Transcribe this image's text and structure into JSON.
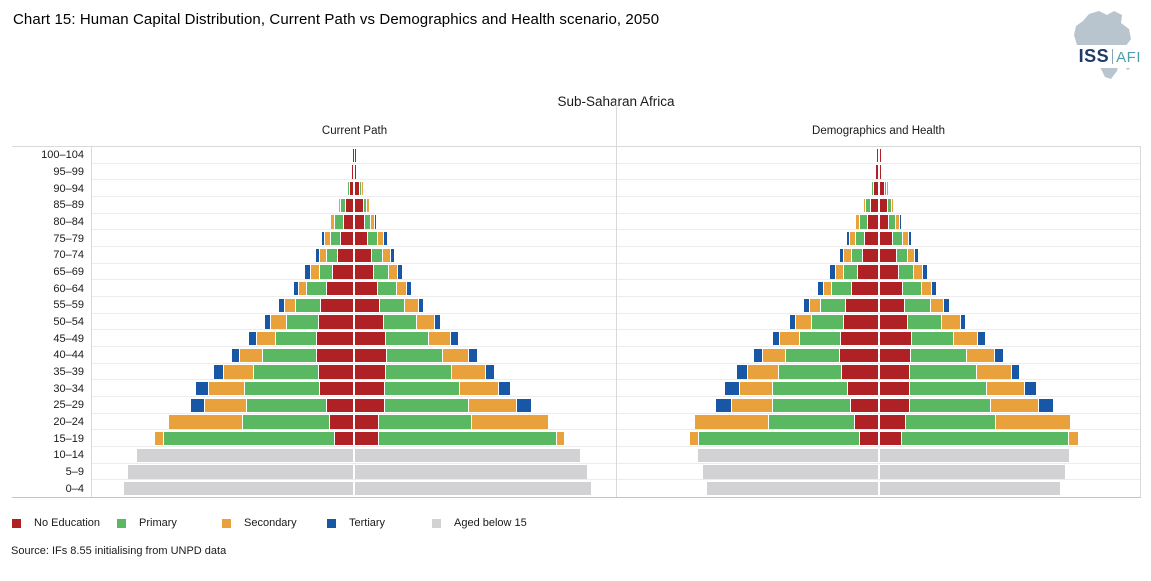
{
  "header": {
    "title": "Chart 15: Human Capital Distribution, Current Path vs Demographics and Health scenario, 2050"
  },
  "logo": {
    "iss": "ISS",
    "afi": "AFI"
  },
  "footer": {
    "source": "Source: IFs 8.55 initialising from UNPD data"
  },
  "chart_data": {
    "type": "population_pyramid",
    "region_title": "Sub-Saharan Africa",
    "x_axis": {
      "tick_labels_visible": false,
      "units": "relative width units (no numeric axis shown)"
    },
    "grid": true,
    "legend_position": "bottom",
    "colors": {
      "no_education": "#b02125",
      "primary": "#5ab862",
      "secondary": "#e9a23b",
      "tertiary": "#1757a6",
      "below15": "#d2d2d4"
    },
    "segment_keys": [
      "no_education",
      "primary",
      "secondary",
      "tertiary",
      "below15"
    ],
    "legend": [
      {
        "key": "no_education",
        "label": "No Education"
      },
      {
        "key": "primary",
        "label": "Primary"
      },
      {
        "key": "secondary",
        "label": "Secondary"
      },
      {
        "key": "tertiary",
        "label": "Tertiary"
      },
      {
        "key": "below15",
        "label": "Aged below 15"
      }
    ],
    "age_groups": [
      "100–104",
      "95–99",
      "90–94",
      "85–89",
      "80–84",
      "75–79",
      "70–74",
      "65–69",
      "60–64",
      "55–59",
      "50–54",
      "45–49",
      "40–44",
      "35–39",
      "30–34",
      "25–29",
      "20–24",
      "15–19",
      "10–14",
      "5–9",
      "0–4"
    ],
    "row_order": "top-to-bottom as displayed; l = left half of pyramid, r = right half; values are [no_education, primary, secondary, tertiary, below15] half-widths in relative units",
    "panels": [
      {
        "label": "Current Path",
        "rows": [
          {
            "age": "100–104",
            "l": [
              0.4,
              0,
              0,
              0,
              0
            ],
            "r": [
              0.6,
              0,
              0,
              0,
              0
            ]
          },
          {
            "age": "95–99",
            "l": [
              0.8,
              0,
              0,
              0,
              0
            ],
            "r": [
              1,
              0,
              0,
              0,
              0
            ]
          },
          {
            "age": "90–94",
            "l": [
              3.5,
              1,
              0,
              0,
              0
            ],
            "r": [
              3.5,
              1.5,
              0.4,
              0,
              0
            ]
          },
          {
            "age": "85–89",
            "l": [
              6.8,
              4,
              0.8,
              0,
              0
            ],
            "r": [
              7.5,
              2.5,
              1.6,
              0,
              0
            ]
          },
          {
            "age": "80–84",
            "l": [
              9.3,
              7.7,
              3,
              0,
              0
            ],
            "r": [
              8.5,
              5.7,
              3.3,
              0.8,
              0
            ]
          },
          {
            "age": "75–79",
            "l": [
              12.5,
              8.5,
              5,
              2,
              0
            ],
            "r": [
              12,
              9,
              5,
              2.5,
              0
            ]
          },
          {
            "age": "70–74",
            "l": [
              15,
              10,
              6.5,
              3,
              0
            ],
            "r": [
              16,
              10,
              6.5,
              3,
              0
            ]
          },
          {
            "age": "65–69",
            "l": [
              20,
              12.3,
              7.3,
              5,
              0
            ],
            "r": [
              18.3,
              13.3,
              8.4,
              4,
              0
            ]
          },
          {
            "age": "60–64",
            "l": [
              26.5,
              18.3,
              7.3,
              4.4,
              0
            ],
            "r": [
              21.8,
              18.4,
              8.7,
              4,
              0
            ]
          },
          {
            "age": "55–59",
            "l": [
              32,
              24,
              10,
              4.6,
              0
            ],
            "r": [
              24.2,
              24.3,
              12.6,
              4.3,
              0
            ]
          },
          {
            "age": "50–54",
            "l": [
              34.3,
              30.7,
              15,
              5,
              0
            ],
            "r": [
              27.5,
              32.3,
              17.7,
              4.4,
              0
            ]
          },
          {
            "age": "45–49",
            "l": [
              35.7,
              40,
              18,
              7,
              0
            ],
            "r": [
              30.4,
              41.3,
              21.7,
              7,
              0
            ]
          },
          {
            "age": "40–44",
            "l": [
              35.7,
              53.3,
              21.7,
              7.3,
              0
            ],
            "r": [
              31,
              54.7,
              25.7,
              7.7,
              0
            ]
          },
          {
            "age": "35–39",
            "l": [
              34,
              64.3,
              28.7,
              9.3,
              0
            ],
            "r": [
              30,
              65,
              33,
              8.4,
              0
            ]
          },
          {
            "age": "30–34",
            "l": [
              32.7,
              74,
              35,
              12.3,
              0
            ],
            "r": [
              29.4,
              74,
              37.3,
              11,
              0
            ]
          },
          {
            "age": "25–29",
            "l": [
              25.7,
              79,
              41.7,
              12.4,
              0
            ],
            "r": [
              28.7,
              83.3,
              46.7,
              14.7,
              0
            ]
          },
          {
            "age": "20–24",
            "l": [
              23.4,
              85.6,
              73.4,
              0,
              0
            ],
            "r": [
              22.8,
              92.4,
              76,
              0,
              0
            ]
          },
          {
            "age": "15–19",
            "l": [
              18,
              170,
              8.3,
              0,
              0
            ],
            "r": [
              23,
              177,
              7.4,
              0,
              0
            ]
          },
          {
            "age": "10–14",
            "l": [
              0,
              0,
              0,
              0,
              216.5
            ],
            "r": [
              0,
              0,
              0,
              0,
              225
            ]
          },
          {
            "age": "5–9",
            "l": [
              0,
              0,
              0,
              0,
              224.8
            ],
            "r": [
              0,
              0,
              0,
              0,
              231.8
            ]
          },
          {
            "age": "0–4",
            "l": [
              0,
              0,
              0,
              0,
              229.2
            ],
            "r": [
              0,
              0,
              0,
              0,
              236.2
            ]
          }
        ]
      },
      {
        "label": "Demographics and Health",
        "rows": [
          {
            "age": "100–104",
            "l": [
              0.3,
              0,
              0,
              0,
              0
            ],
            "r": [
              0.5,
              0,
              0,
              0,
              0
            ]
          },
          {
            "age": "95–99",
            "l": [
              1.2,
              0,
              0,
              0,
              0
            ],
            "r": [
              1.4,
              0,
              0,
              0,
              0
            ]
          },
          {
            "age": "90–94",
            "l": [
              3.5,
              1,
              0,
              0,
              0
            ],
            "r": [
              4,
              1.5,
              0.4,
              0,
              0
            ]
          },
          {
            "age": "85–89",
            "l": [
              7,
              3.5,
              0.8,
              0,
              0
            ],
            "r": [
              7.5,
              2.5,
              1.5,
              0,
              0
            ]
          },
          {
            "age": "80–84",
            "l": [
              9.3,
              7,
              3,
              0,
              0
            ],
            "r": [
              8.5,
              5.5,
              3.3,
              0.8,
              0
            ]
          },
          {
            "age": "75–79",
            "l": [
              12.5,
              8.5,
              5,
              2,
              0
            ],
            "r": [
              12,
              9,
              5,
              2.5,
              0
            ]
          },
          {
            "age": "70–74",
            "l": [
              15,
              10,
              6.5,
              3,
              0
            ],
            "r": [
              16,
              10,
              6.5,
              3,
              0
            ]
          },
          {
            "age": "65–69",
            "l": [
              20,
              12.5,
              7.5,
              5,
              0
            ],
            "r": [
              18.5,
              13.5,
              8.5,
              4,
              0
            ]
          },
          {
            "age": "60–64",
            "l": [
              26,
              18.5,
              7.5,
              4.5,
              0
            ],
            "r": [
              22,
              18.5,
              9,
              4,
              0
            ]
          },
          {
            "age": "55–59",
            "l": [
              31.5,
              24,
              10.5,
              4.5,
              0
            ],
            "r": [
              24.5,
              24.5,
              12.5,
              4.5,
              0
            ]
          },
          {
            "age": "50–54",
            "l": [
              34,
              31,
              15,
              5,
              0
            ],
            "r": [
              27.5,
              32.5,
              18,
              4.5,
              0
            ]
          },
          {
            "age": "45–49",
            "l": [
              36.7,
              40,
              19.3,
              6,
              0
            ],
            "r": [
              31.7,
              40.7,
              23,
              6.7,
              0
            ]
          },
          {
            "age": "40–44",
            "l": [
              37.7,
              53,
              22.3,
              7.7,
              0
            ],
            "r": [
              30.7,
              55,
              26.7,
              7.7,
              0
            ]
          },
          {
            "age": "35–39",
            "l": [
              35.3,
              62.6,
              29.3,
              10,
              0
            ],
            "r": [
              29,
              66.3,
              34,
              7.7,
              0
            ]
          },
          {
            "age": "30–34",
            "l": [
              30,
              73.3,
              32.6,
              13.3,
              0
            ],
            "r": [
              29,
              76,
              37.3,
              11.6,
              0
            ]
          },
          {
            "age": "25–29",
            "l": [
              26.6,
              77.4,
              40,
              14.3,
              0
            ],
            "r": [
              29,
              80.7,
              46.7,
              14.3,
              0
            ]
          },
          {
            "age": "20–24",
            "l": [
              22.3,
              85,
              73.3,
              0,
              0
            ],
            "r": [
              25.7,
              89,
              74,
              0,
              0
            ]
          },
          {
            "age": "15–19",
            "l": [
              17.3,
              160,
              8,
              0,
              0
            ],
            "r": [
              21.7,
              166,
              9,
              0,
              0
            ]
          },
          {
            "age": "10–14",
            "l": [
              0,
              0,
              0,
              0,
              179.3
            ],
            "r": [
              0,
              0,
              0,
              0,
              189
            ]
          },
          {
            "age": "5–9",
            "l": [
              0,
              0,
              0,
              0,
              175
            ],
            "r": [
              0,
              0,
              0,
              0,
              185.7
            ]
          },
          {
            "age": "0–4",
            "l": [
              0,
              0,
              0,
              0,
              171
            ],
            "r": [
              0,
              0,
              0,
              0,
              180.7
            ]
          }
        ]
      }
    ]
  }
}
